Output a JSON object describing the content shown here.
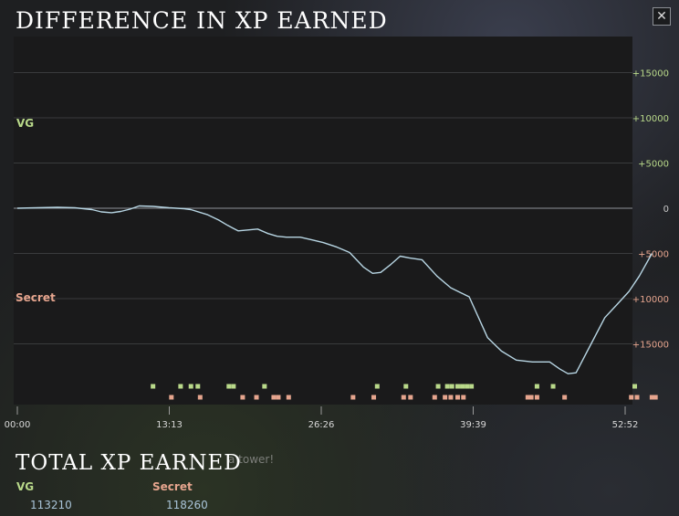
{
  "header": {
    "title": "DIFFERENCE IN XP EARNED",
    "close_label": "✕"
  },
  "teams": {
    "top": {
      "name": "VG",
      "color": "#b9d98a"
    },
    "bottom": {
      "name": "Secret",
      "color": "#e6a58e"
    }
  },
  "totals": {
    "title": "TOTAL XP EARNED",
    "teams": [
      {
        "name": "VG",
        "value": "113210"
      },
      {
        "name": "Secret",
        "value": "118260"
      }
    ]
  },
  "background_text": "a tower!",
  "chart_data": {
    "type": "line",
    "title": "DIFFERENCE IN XP EARNED",
    "xlabel": "",
    "ylabel": "",
    "x_range_minutes": [
      0,
      52.867
    ],
    "ylim": [
      -19500,
      19500
    ],
    "x_ticks": [
      {
        "t": 0,
        "label": "00:00"
      },
      {
        "t": 13.217,
        "label": "13:13"
      },
      {
        "t": 26.433,
        "label": "26:26"
      },
      {
        "t": 39.65,
        "label": "39:39"
      },
      {
        "t": 52.867,
        "label": "52:52"
      }
    ],
    "y_ticks": [
      {
        "v": 15000,
        "label": "+15000",
        "color": "#b9d98a"
      },
      {
        "v": 10000,
        "label": "+10000",
        "color": "#b9d98a"
      },
      {
        "v": 5000,
        "label": "+5000",
        "color": "#b9d98a"
      },
      {
        "v": 0,
        "label": "0",
        "color": "#c8c8c8"
      },
      {
        "v": -5000,
        "label": "+5000",
        "color": "#e6a58e"
      },
      {
        "v": -10000,
        "label": "+10000",
        "color": "#e6a58e"
      },
      {
        "v": -15000,
        "label": "+15000",
        "color": "#e6a58e"
      }
    ],
    "grid": true,
    "line_color": "#b8d6e4",
    "series": [
      {
        "values": [
          [
            0,
            0
          ],
          [
            1.7,
            50
          ],
          [
            3.5,
            100
          ],
          [
            5,
            50
          ],
          [
            6.5,
            -150
          ],
          [
            7.3,
            -400
          ],
          [
            8.2,
            -500
          ],
          [
            9,
            -350
          ],
          [
            9.8,
            -100
          ],
          [
            10.6,
            250
          ],
          [
            11.8,
            200
          ],
          [
            13.2,
            50
          ],
          [
            14.5,
            -50
          ],
          [
            15.1,
            -150
          ],
          [
            16.5,
            -700
          ],
          [
            17.5,
            -1300
          ],
          [
            18.3,
            -1900
          ],
          [
            19.2,
            -2500
          ],
          [
            20.9,
            -2300
          ],
          [
            21.8,
            -2800
          ],
          [
            22.6,
            -3100
          ],
          [
            23.4,
            -3200
          ],
          [
            24.6,
            -3200
          ],
          [
            25.6,
            -3500
          ],
          [
            26.6,
            -3800
          ],
          [
            27.8,
            -4300
          ],
          [
            28.9,
            -4900
          ],
          [
            30.1,
            -6500
          ],
          [
            30.9,
            -7200
          ],
          [
            31.6,
            -7100
          ],
          [
            32.5,
            -6200
          ],
          [
            33.3,
            -5300
          ],
          [
            34.1,
            -5500
          ],
          [
            35.2,
            -5700
          ],
          [
            36.5,
            -7500
          ],
          [
            37.7,
            -8800
          ],
          [
            38.5,
            -9300
          ],
          [
            39.3,
            -9800
          ],
          [
            40.9,
            -14300
          ],
          [
            42.1,
            -15800
          ],
          [
            43.4,
            -16800
          ],
          [
            44.8,
            -17000
          ],
          [
            46.3,
            -17000
          ],
          [
            47.2,
            -17800
          ],
          [
            47.9,
            -18300
          ],
          [
            48.6,
            -18200
          ],
          [
            49.7,
            -15500
          ],
          [
            51.1,
            -12100
          ],
          [
            52.2,
            -10600
          ],
          [
            53.2,
            -9200
          ],
          [
            54.1,
            -7500
          ],
          [
            55.2,
            -5000
          ]
        ]
      }
    ],
    "event_markers": {
      "top": [
        11.8,
        14.2,
        15.1,
        15.7,
        18.4,
        18.8,
        21.5,
        31.3,
        33.8,
        36.6,
        37.4,
        37.8,
        38.3,
        38.7,
        39.1,
        39.5,
        45.2,
        46.6,
        53.7
      ],
      "bottom": [
        13.4,
        15.9,
        19.6,
        20.8,
        22.3,
        22.7,
        23.6,
        29.2,
        31.0,
        33.6,
        34.2,
        36.3,
        37.2,
        37.7,
        38.3,
        38.8,
        44.4,
        44.7,
        45.2,
        47.6,
        53.4,
        53.9,
        55.2,
        55.5
      ]
    }
  }
}
